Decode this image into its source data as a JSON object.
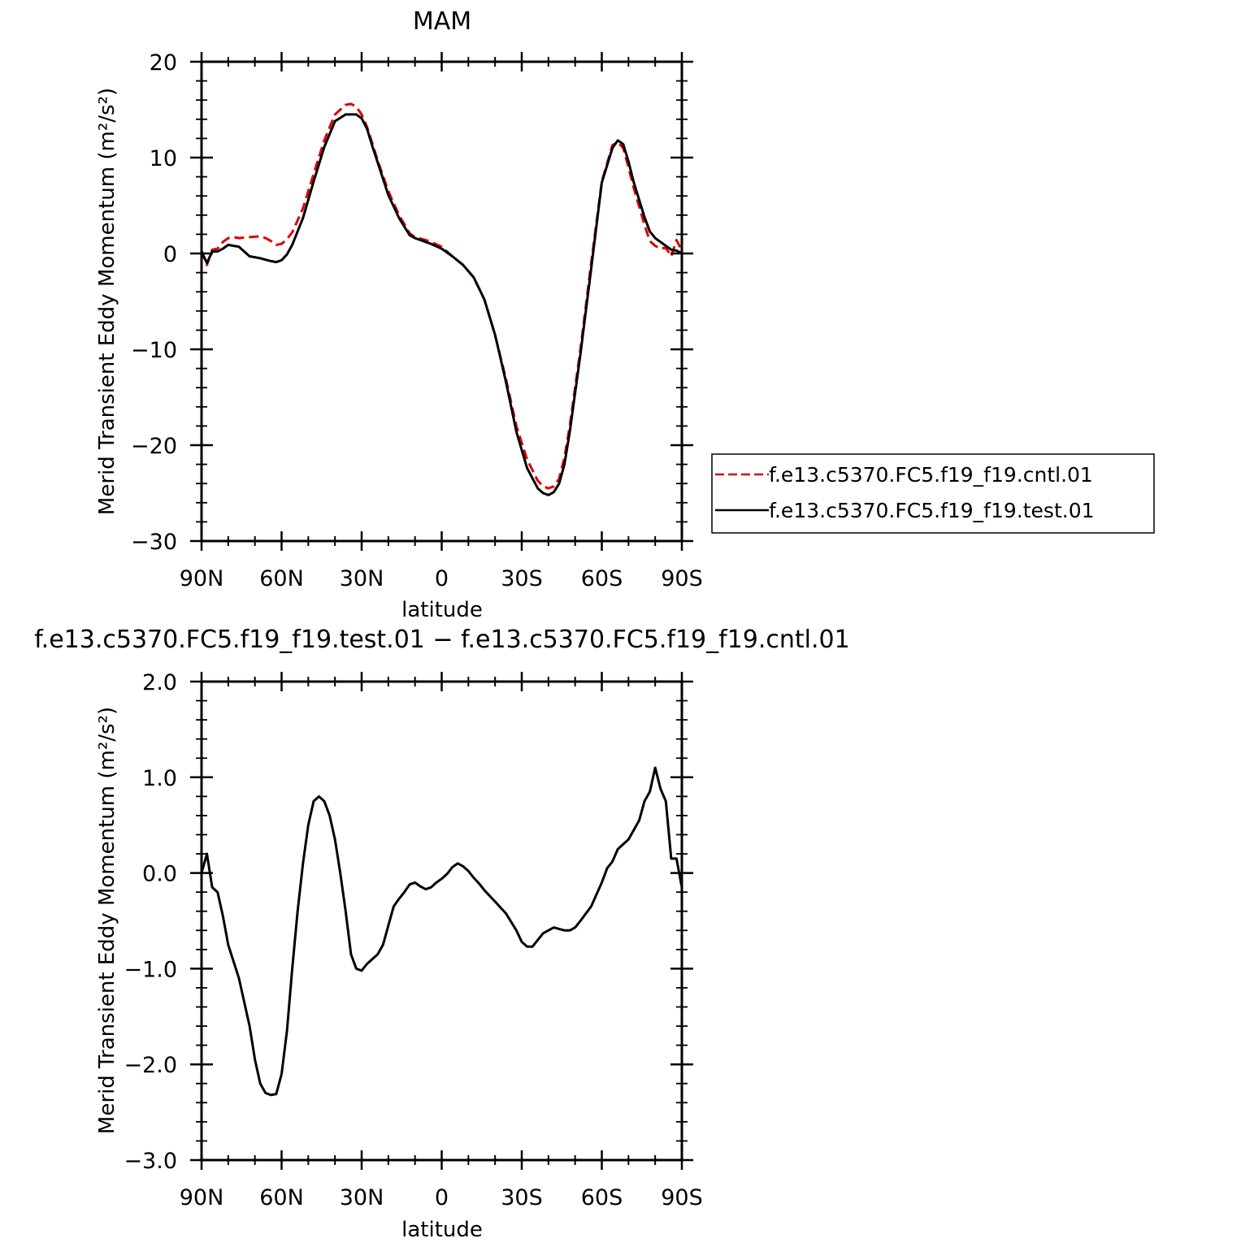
{
  "figure": {
    "panels": [
      {
        "title": "MAM",
        "xlabel": "latitude",
        "ylabel": "Merid Transient Eddy Momentum (m²/s²)",
        "xticks": [
          "90N",
          "60N",
          "30N",
          "0",
          "30S",
          "60S",
          "90S"
        ],
        "yticks": [
          "20",
          "10",
          "0",
          "−10",
          "−20",
          "−30"
        ],
        "legend": [
          "f.e13.c5370.FC5.f19_f19.cntl.01",
          "f.e13.c5370.FC5.f19_f19.test.01"
        ]
      },
      {
        "title": "f.e13.c5370.FC5.f19_f19.test.01 − f.e13.c5370.FC5.f19_f19.cntl.01",
        "xlabel": "latitude",
        "ylabel": "Merid Transient Eddy Momentum (m²/s²)",
        "xticks": [
          "90N",
          "60N",
          "30N",
          "0",
          "30S",
          "60S",
          "90S"
        ],
        "yticks": [
          "2.0",
          "1.0",
          "0.0",
          "−1.0",
          "−2.0",
          "−3.0"
        ]
      }
    ]
  },
  "chart_data": [
    {
      "type": "line",
      "title": "MAM",
      "xlabel": "latitude",
      "ylabel": "Merid Transient Eddy Momentum (m²/s²)",
      "x_unit": "degrees latitude (positive = N, negative = S)",
      "xlim": [
        90,
        -90
      ],
      "ylim": [
        -30,
        20
      ],
      "grid": false,
      "legend_position": "right",
      "series": [
        {
          "name": "f.e13.c5370.FC5.f19_f19.cntl.01",
          "color": "#e00000",
          "dash": "dashed",
          "x": [
            90,
            88,
            86,
            84,
            82,
            80,
            78,
            76,
            72,
            68,
            66,
            64,
            62,
            60,
            58,
            56,
            52,
            48,
            44,
            40,
            36,
            34,
            32,
            30,
            28,
            26,
            24,
            20,
            16,
            12,
            10,
            6,
            4,
            0,
            -4,
            -8,
            -12,
            -16,
            -20,
            -24,
            -28,
            -32,
            -36,
            -38,
            -40,
            -42,
            -44,
            -46,
            -48,
            -52,
            -56,
            -60,
            -64,
            -66,
            -68,
            -70,
            -72,
            -76,
            -78,
            -80,
            -82,
            -84,
            -86,
            -88,
            -90
          ],
          "y": [
            0.3,
            -1.2,
            0.4,
            0.5,
            1.2,
            1.6,
            1.7,
            1.6,
            1.7,
            1.8,
            1.6,
            1.3,
            0.9,
            1.0,
            1.5,
            2.2,
            4.7,
            8.3,
            11.8,
            14.5,
            15.5,
            15.6,
            15.3,
            14.5,
            13.2,
            11.5,
            9.7,
            6.5,
            4.0,
            2.1,
            1.7,
            1.4,
            1.2,
            0.7,
            -0.3,
            -1.2,
            -2.5,
            -4.8,
            -8.5,
            -13.0,
            -18.0,
            -21.5,
            -23.7,
            -24.3,
            -24.5,
            -24.3,
            -23.5,
            -21.3,
            -18.0,
            -10.0,
            -1.0,
            7.5,
            11.3,
            11.6,
            11.0,
            9.0,
            6.8,
            3.0,
            1.3,
            0.8,
            0.5,
            0.6,
            -0.3,
            1.4,
            0.3
          ]
        },
        {
          "name": "f.e13.c5370.FC5.f19_f19.test.01",
          "color": "#000000",
          "dash": "solid",
          "x": [
            90,
            88,
            86,
            84,
            82,
            80,
            78,
            76,
            72,
            68,
            64,
            62,
            60,
            58,
            56,
            52,
            48,
            44,
            40,
            36,
            34,
            32,
            30,
            28,
            26,
            24,
            20,
            16,
            12,
            10,
            6,
            4,
            0,
            -4,
            -8,
            -12,
            -16,
            -20,
            -24,
            -28,
            -32,
            -36,
            -38,
            -40,
            -42,
            -44,
            -46,
            -48,
            -52,
            -56,
            -60,
            -64,
            -66,
            -68,
            -70,
            -72,
            -76,
            -78,
            -80,
            -82,
            -84,
            -86,
            -88,
            -90
          ],
          "y": [
            0.2,
            -1.0,
            0.2,
            0.2,
            0.5,
            0.9,
            0.8,
            0.7,
            -0.3,
            -0.5,
            -0.8,
            -0.9,
            -0.7,
            -0.1,
            0.9,
            3.7,
            7.5,
            11.1,
            13.8,
            14.5,
            14.5,
            14.5,
            14.1,
            13.0,
            11.2,
            9.5,
            6.1,
            3.7,
            1.9,
            1.6,
            1.2,
            1.0,
            0.5,
            -0.3,
            -1.2,
            -2.5,
            -4.8,
            -8.5,
            -13.3,
            -18.6,
            -22.4,
            -24.5,
            -25.0,
            -25.2,
            -24.9,
            -24.0,
            -22.0,
            -18.6,
            -10.5,
            -1.6,
            7.4,
            11.0,
            11.8,
            11.4,
            9.6,
            7.4,
            3.8,
            2.3,
            1.6,
            1.2,
            0.8,
            0.4,
            0.3,
            0.0
          ]
        }
      ]
    },
    {
      "type": "line",
      "title": "f.e13.c5370.FC5.f19_f19.test.01 − f.e13.c5370.FC5.f19_f19.cntl.01",
      "xlabel": "latitude",
      "ylabel": "Merid Transient Eddy Momentum (m²/s²)",
      "x_unit": "degrees latitude (positive = N, negative = S)",
      "xlim": [
        90,
        -90
      ],
      "ylim": [
        -3.0,
        2.0
      ],
      "grid": false,
      "series": [
        {
          "color": "#000000",
          "dash": "solid",
          "x": [
            90,
            88,
            86,
            84,
            82,
            80,
            76,
            72,
            70,
            68,
            66,
            64,
            62,
            60,
            58,
            56,
            54,
            52,
            50,
            48,
            46,
            44,
            42,
            40,
            38,
            36,
            34,
            32,
            30,
            28,
            26,
            24,
            22,
            20,
            18,
            16,
            14,
            12,
            10,
            8,
            6,
            4,
            2,
            0,
            -2,
            -4,
            -6,
            -8,
            -10,
            -12,
            -14,
            -16,
            -20,
            -24,
            -28,
            -30,
            -32,
            -34,
            -36,
            -38,
            -42,
            -46,
            -48,
            -50,
            -52,
            -56,
            -60,
            -62,
            -64,
            -66,
            -70,
            -72,
            -74,
            -76,
            -78,
            -80,
            -82,
            -84,
            -86,
            -88,
            -90
          ],
          "y": [
            0.0,
            0.2,
            -0.15,
            -0.2,
            -0.45,
            -0.75,
            -1.1,
            -1.6,
            -1.95,
            -2.2,
            -2.3,
            -2.32,
            -2.31,
            -2.1,
            -1.65,
            -1.0,
            -0.4,
            0.1,
            0.5,
            0.75,
            0.8,
            0.75,
            0.6,
            0.35,
            0.0,
            -0.4,
            -0.85,
            -1.0,
            -1.02,
            -0.95,
            -0.9,
            -0.85,
            -0.75,
            -0.55,
            -0.35,
            -0.27,
            -0.2,
            -0.12,
            -0.1,
            -0.14,
            -0.17,
            -0.15,
            -0.1,
            -0.06,
            -0.01,
            0.06,
            0.1,
            0.07,
            0.02,
            -0.05,
            -0.11,
            -0.18,
            -0.3,
            -0.42,
            -0.6,
            -0.72,
            -0.77,
            -0.77,
            -0.7,
            -0.63,
            -0.57,
            -0.6,
            -0.6,
            -0.57,
            -0.5,
            -0.35,
            -0.1,
            0.05,
            0.12,
            0.25,
            0.35,
            0.45,
            0.55,
            0.75,
            0.85,
            1.1,
            0.88,
            0.75,
            0.15,
            0.15,
            -0.15
          ]
        }
      ]
    }
  ]
}
